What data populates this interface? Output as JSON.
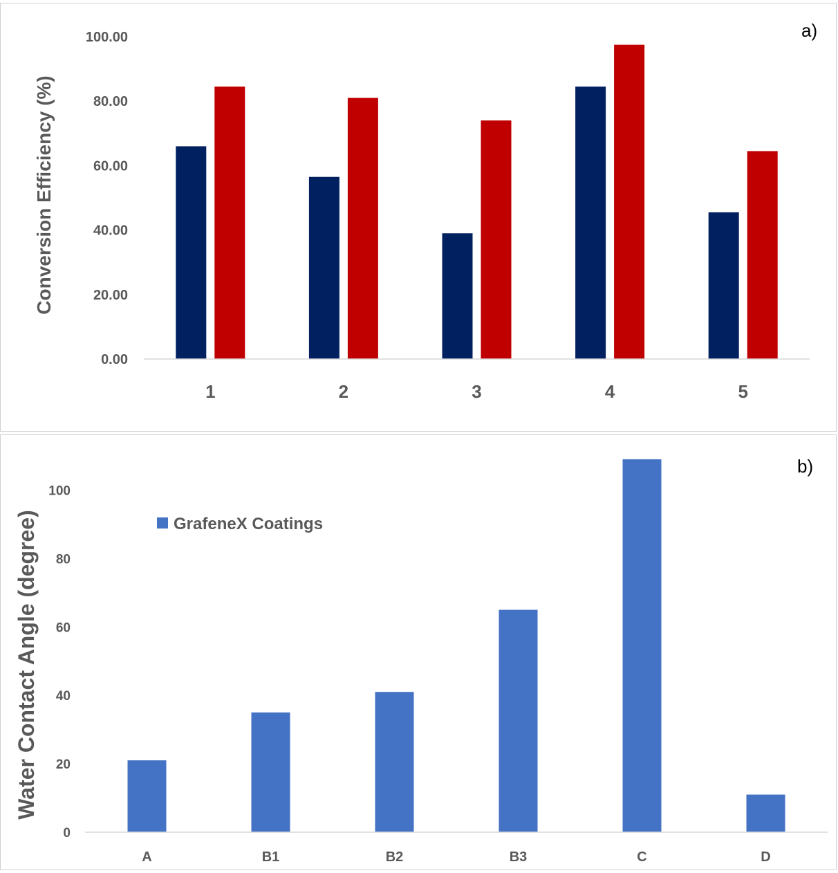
{
  "chart_data": [
    {
      "type": "bar",
      "panel_label": "a)",
      "title": "",
      "xlabel": "",
      "ylabel": "Conversion Efficiency (%)",
      "categories": [
        "1",
        "2",
        "3",
        "4",
        "5"
      ],
      "ylim": [
        0,
        100
      ],
      "yticks": [
        "0.00",
        "20.00",
        "40.00",
        "60.00",
        "80.00",
        "100.00"
      ],
      "grid": false,
      "series": [
        {
          "values": [
            66,
            56.5,
            39,
            84.5,
            45.5
          ],
          "color": "#002060"
        },
        {
          "values": [
            84.5,
            81,
            74,
            97.5,
            64.5
          ],
          "color": "#C00000"
        }
      ]
    },
    {
      "type": "bar",
      "panel_label": "b)",
      "title": "",
      "xlabel": "",
      "ylabel": "Water Contact Angle (degree)",
      "categories": [
        "A",
        "B1",
        "B2",
        "B3",
        "C",
        "D"
      ],
      "ylim": [
        0,
        110
      ],
      "yticks": [
        "0",
        "20",
        "40",
        "60",
        "80",
        "100"
      ],
      "grid": false,
      "legend_position": "top-left",
      "series": [
        {
          "name": "GrafeneX Coatings",
          "values": [
            21,
            35,
            41,
            65,
            109,
            11
          ],
          "color": "#4472C4"
        }
      ]
    }
  ]
}
